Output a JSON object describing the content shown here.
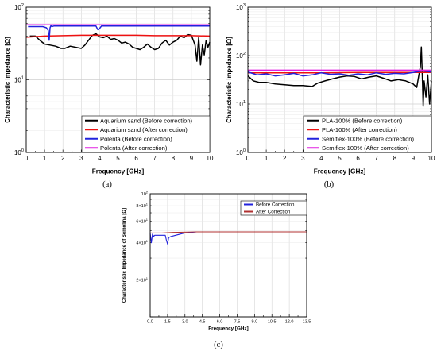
{
  "chart_data": [
    {
      "type": "line",
      "panel": "(a)",
      "xlabel": "Frequency [GHz]",
      "ylabel": "Characteristic Impedance [Ω]",
      "xlim": [
        0,
        10
      ],
      "ylim": [
        1,
        100
      ],
      "yscale": "log",
      "grid": true,
      "legend": "bottom-right",
      "xticks": [
        "0",
        "1",
        "2",
        "3",
        "4",
        "5",
        "6",
        "7",
        "8",
        "9",
        "10"
      ],
      "yticks": [
        {
          "v": 1,
          "label": "10",
          "exp": "0"
        },
        {
          "v": 10,
          "label": "10",
          "exp": "1"
        },
        {
          "v": 100,
          "label": "10",
          "exp": "2"
        }
      ],
      "series": [
        {
          "name": "Aquarium sand (Before correction)",
          "color": "#000000",
          "x": [
            0.2,
            0.5,
            0.8,
            1.0,
            1.3,
            1.6,
            1.9,
            2.1,
            2.4,
            2.7,
            3.0,
            3.2,
            3.4,
            3.6,
            3.8,
            4.0,
            4.2,
            4.4,
            4.6,
            4.8,
            5.0,
            5.2,
            5.4,
            5.6,
            5.8,
            6.0,
            6.2,
            6.4,
            6.6,
            6.8,
            7.0,
            7.2,
            7.4,
            7.6,
            7.8,
            8.0,
            8.2,
            8.4,
            8.6,
            8.8,
            9.0,
            9.2,
            9.3,
            9.4,
            9.5,
            9.6,
            9.7,
            9.8,
            9.9,
            10.0
          ],
          "y": [
            40,
            40,
            34,
            31,
            30,
            29,
            27,
            27,
            29,
            28,
            27,
            30,
            35,
            41,
            43,
            39,
            38,
            40,
            36,
            37,
            35,
            32,
            33,
            31,
            28,
            27,
            26,
            28,
            31,
            28,
            26,
            27,
            32,
            35,
            30,
            33,
            35,
            40,
            38,
            42,
            41,
            30,
            18,
            38,
            16,
            30,
            22,
            35,
            28,
            33
          ]
        },
        {
          "name": "Aquarium sand (After correction)",
          "color": "#ee1111",
          "x": [
            0,
            1,
            2,
            3,
            4,
            5,
            6,
            7,
            8,
            9,
            10
          ],
          "y": [
            38.5,
            40,
            40.5,
            41,
            41,
            41,
            41,
            40.5,
            40.5,
            40.5,
            40
          ]
        },
        {
          "name": "Polenta (Before correction)",
          "color": "#2222dd",
          "x": [
            0.1,
            0.9,
            1.0,
            1.1,
            1.2,
            1.25,
            1.3,
            1.35,
            1.4,
            1.5,
            2.0,
            3.0,
            3.8,
            3.9,
            4.0,
            4.1,
            4.3,
            5.0,
            6.0,
            7.0,
            8.0,
            9.0,
            10.0
          ],
          "y": [
            54,
            54,
            53,
            52,
            48,
            35,
            52,
            56,
            54,
            55,
            55,
            55,
            55,
            49,
            51,
            55,
            55,
            55,
            55,
            55,
            55,
            55,
            55
          ]
        },
        {
          "name": "Polenta (After correction)",
          "color": "#e020e0",
          "x": [
            0,
            2,
            4,
            6,
            8,
            10
          ],
          "y": [
            57,
            57,
            57,
            57,
            57,
            57
          ]
        }
      ]
    },
    {
      "type": "line",
      "panel": "(b)",
      "xlabel": "Frequency [GHz]",
      "ylabel": "Characteristic Impedance [Ω]",
      "xlim": [
        0,
        10
      ],
      "ylim": [
        1,
        1000
      ],
      "yscale": "log",
      "grid": true,
      "legend": "bottom-right",
      "xticks": [
        "0",
        "1",
        "2",
        "3",
        "4",
        "5",
        "6",
        "7",
        "8",
        "9",
        "10"
      ],
      "yticks": [
        {
          "v": 1,
          "label": "10",
          "exp": "0"
        },
        {
          "v": 10,
          "label": "10",
          "exp": "1"
        },
        {
          "v": 100,
          "label": "10",
          "exp": "2"
        },
        {
          "v": 1000,
          "label": "10",
          "exp": "3"
        }
      ],
      "series": [
        {
          "name": "PLA-100% (Before correction)",
          "color": "#000000",
          "x": [
            0,
            0.3,
            0.6,
            1.0,
            1.5,
            2.0,
            2.5,
            3.0,
            3.5,
            3.8,
            4.2,
            4.6,
            5.0,
            5.4,
            5.8,
            6.2,
            6.6,
            7.0,
            7.4,
            7.8,
            8.2,
            8.6,
            9.0,
            9.2,
            9.4,
            9.45,
            9.5,
            9.55,
            9.6,
            9.7,
            9.8,
            9.9,
            10.0
          ],
          "y": [
            38,
            30,
            28,
            28,
            26,
            25,
            24,
            24,
            23,
            27,
            30,
            33,
            36,
            38,
            37,
            33,
            36,
            38,
            34,
            30,
            32,
            30,
            26,
            22,
            60,
            150,
            40,
            9,
            30,
            14,
            40,
            10,
            30
          ]
        },
        {
          "name": "PLA-100% (After correction)",
          "color": "#ee1111",
          "x": [
            0,
            2,
            4,
            6,
            8,
            10
          ],
          "y": [
            44,
            44,
            44,
            45,
            45,
            45
          ]
        },
        {
          "name": "Semiflex-100% (Before correction)",
          "color": "#2222dd",
          "x": [
            0,
            0.5,
            1.0,
            1.5,
            2.0,
            2.5,
            3.0,
            3.5,
            4.0,
            4.5,
            5.0,
            5.5,
            6.0,
            6.5,
            7.0,
            7.5,
            8.0,
            8.5,
            9.0,
            9.5,
            10.0
          ],
          "y": [
            46,
            40,
            42,
            38,
            40,
            43,
            38,
            40,
            44,
            41,
            42,
            39,
            42,
            40,
            44,
            41,
            43,
            42,
            45,
            48,
            46
          ]
        },
        {
          "name": "Semiflex-100% (After correction)",
          "color": "#e020e0",
          "x": [
            0,
            2,
            4,
            6,
            8,
            10
          ],
          "y": [
            50,
            50,
            50,
            50,
            50,
            50
          ]
        }
      ]
    },
    {
      "type": "line",
      "panel": "(c)",
      "xlabel": "Frequency [GHz]",
      "ylabel": "Characteristic Impedance of Semolina [Ω]",
      "xlim": [
        0,
        13.5
      ],
      "ylim": [
        10,
        100
      ],
      "yscale": "log",
      "grid": true,
      "legend": "top-right",
      "xticks": [
        "0.0",
        "1.5",
        "3.0",
        "4.5",
        "6.0",
        "7.5",
        "9.0",
        "10.5",
        "12.0",
        "13.5"
      ],
      "yticks": [
        {
          "v": 20,
          "label": "2×10",
          "exp": "1"
        },
        {
          "v": 40,
          "label": "4×10",
          "exp": "1"
        },
        {
          "v": 60,
          "label": "6×10",
          "exp": "1"
        },
        {
          "v": 100,
          "label": "10",
          "exp": "2"
        }
      ],
      "minor_yticks_labeled": [
        {
          "v": 80,
          "label": "8×10",
          "exp": "1"
        }
      ],
      "series": [
        {
          "name": "Before Correction",
          "color": "#2222dd",
          "x": [
            0,
            0.1,
            0.2,
            0.3,
            0.4,
            1.0,
            1.3,
            1.4,
            1.5,
            1.6,
            1.8,
            2.2,
            2.6,
            3.0,
            4.0,
            6,
            8,
            10,
            12,
            13.5
          ],
          "y": [
            48,
            40,
            47,
            45,
            46,
            46,
            46,
            42,
            39,
            44,
            45,
            46,
            47,
            48,
            49,
            49,
            49,
            49,
            49,
            49
          ]
        },
        {
          "name": "After Correction",
          "color": "#b03030",
          "x": [
            0,
            1,
            2,
            4,
            6,
            8,
            10,
            12,
            13.5
          ],
          "y": [
            48,
            48,
            48.5,
            49,
            49,
            49,
            49,
            49,
            49
          ]
        }
      ]
    }
  ]
}
